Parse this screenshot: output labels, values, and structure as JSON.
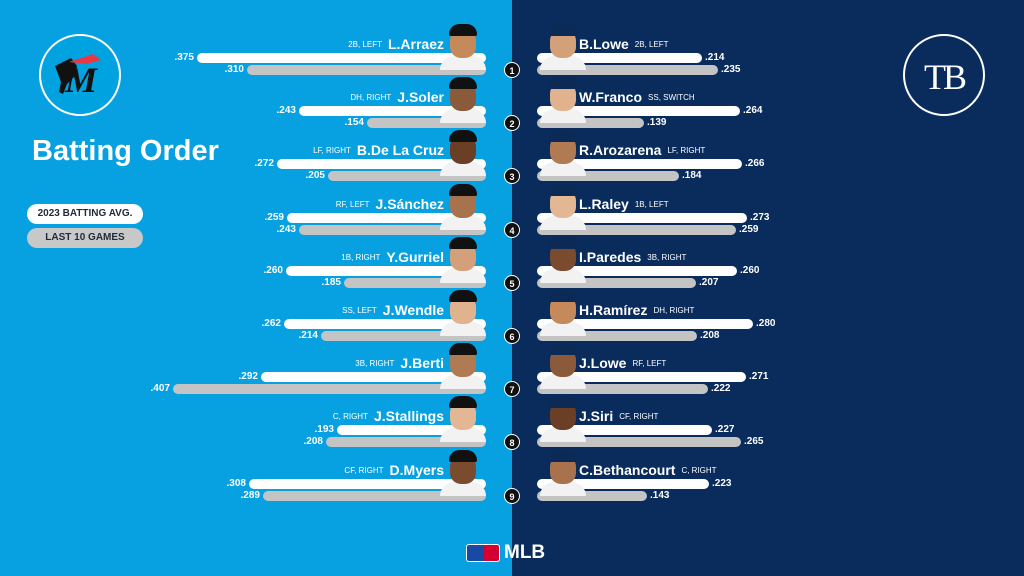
{
  "title": "Batting Order",
  "legend": {
    "season": "2023 BATTING AVG.",
    "last10": "LAST 10 GAMES"
  },
  "footer": {
    "brand": "MLB"
  },
  "teams": {
    "left": "Miami Marlins",
    "right": "Tampa Bay Rays",
    "right_logo_text": "TB"
  },
  "colors": {
    "left_bg": "#07a1e2",
    "right_bg": "#092c5c",
    "season_bar": "#ffffff",
    "last10_bar": "#c4c4c4"
  },
  "chart_data": {
    "type": "bar",
    "title": "Batting Order",
    "series": [
      {
        "name": "2023 BATTING AVG."
      },
      {
        "name": "LAST 10 GAMES"
      }
    ],
    "scale_max": 0.45,
    "marlins": [
      {
        "order": "1",
        "name": "L.Arraez",
        "meta": "2B, LEFT",
        "season": 0.375,
        "season_label": ".375",
        "last10": 0.31,
        "last10_label": ".310"
      },
      {
        "order": "2",
        "name": "J.Soler",
        "meta": "DH, RIGHT",
        "season": 0.243,
        "season_label": ".243",
        "last10": 0.154,
        "last10_label": ".154"
      },
      {
        "order": "3",
        "name": "B.De La Cruz",
        "meta": "LF, RIGHT",
        "season": 0.272,
        "season_label": ".272",
        "last10": 0.205,
        "last10_label": ".205"
      },
      {
        "order": "4",
        "name": "J.Sánchez",
        "meta": "RF, LEFT",
        "season": 0.259,
        "season_label": ".259",
        "last10": 0.243,
        "last10_label": ".243"
      },
      {
        "order": "5",
        "name": "Y.Gurriel",
        "meta": "1B, RIGHT",
        "season": 0.26,
        "season_label": ".260",
        "last10": 0.185,
        "last10_label": ".185"
      },
      {
        "order": "6",
        "name": "J.Wendle",
        "meta": "SS, LEFT",
        "season": 0.262,
        "season_label": ".262",
        "last10": 0.214,
        "last10_label": ".214"
      },
      {
        "order": "7",
        "name": "J.Berti",
        "meta": "3B, RIGHT",
        "season": 0.292,
        "season_label": ".292",
        "last10": 0.407,
        "last10_label": ".407"
      },
      {
        "order": "8",
        "name": "J.Stallings",
        "meta": "C, RIGHT",
        "season": 0.193,
        "season_label": ".193",
        "last10": 0.208,
        "last10_label": ".208"
      },
      {
        "order": "9",
        "name": "D.Myers",
        "meta": "CF, RIGHT",
        "season": 0.308,
        "season_label": ".308",
        "last10": 0.289,
        "last10_label": ".289"
      }
    ],
    "rays": [
      {
        "order": "1",
        "name": "B.Lowe",
        "meta": "2B, LEFT",
        "season": 0.214,
        "season_label": ".214",
        "last10": 0.235,
        "last10_label": ".235"
      },
      {
        "order": "2",
        "name": "W.Franco",
        "meta": "SS, SWITCH",
        "season": 0.264,
        "season_label": ".264",
        "last10": 0.139,
        "last10_label": ".139"
      },
      {
        "order": "3",
        "name": "R.Arozarena",
        "meta": "LF, RIGHT",
        "season": 0.266,
        "season_label": ".266",
        "last10": 0.184,
        "last10_label": ".184"
      },
      {
        "order": "4",
        "name": "L.Raley",
        "meta": "1B, LEFT",
        "season": 0.273,
        "season_label": ".273",
        "last10": 0.259,
        "last10_label": ".259"
      },
      {
        "order": "5",
        "name": "I.Paredes",
        "meta": "3B, RIGHT",
        "season": 0.26,
        "season_label": ".260",
        "last10": 0.207,
        "last10_label": ".207"
      },
      {
        "order": "6",
        "name": "H.Ramírez",
        "meta": "DH, RIGHT",
        "season": 0.28,
        "season_label": ".280",
        "last10": 0.208,
        "last10_label": ".208"
      },
      {
        "order": "7",
        "name": "J.Lowe",
        "meta": "RF, LEFT",
        "season": 0.271,
        "season_label": ".271",
        "last10": 0.222,
        "last10_label": ".222"
      },
      {
        "order": "8",
        "name": "J.Siri",
        "meta": "CF, RIGHT",
        "season": 0.227,
        "season_label": ".227",
        "last10": 0.265,
        "last10_label": ".265"
      },
      {
        "order": "9",
        "name": "C.Bethancourt",
        "meta": "C, RIGHT",
        "season": 0.223,
        "season_label": ".223",
        "last10": 0.143,
        "last10_label": ".143"
      }
    ]
  }
}
